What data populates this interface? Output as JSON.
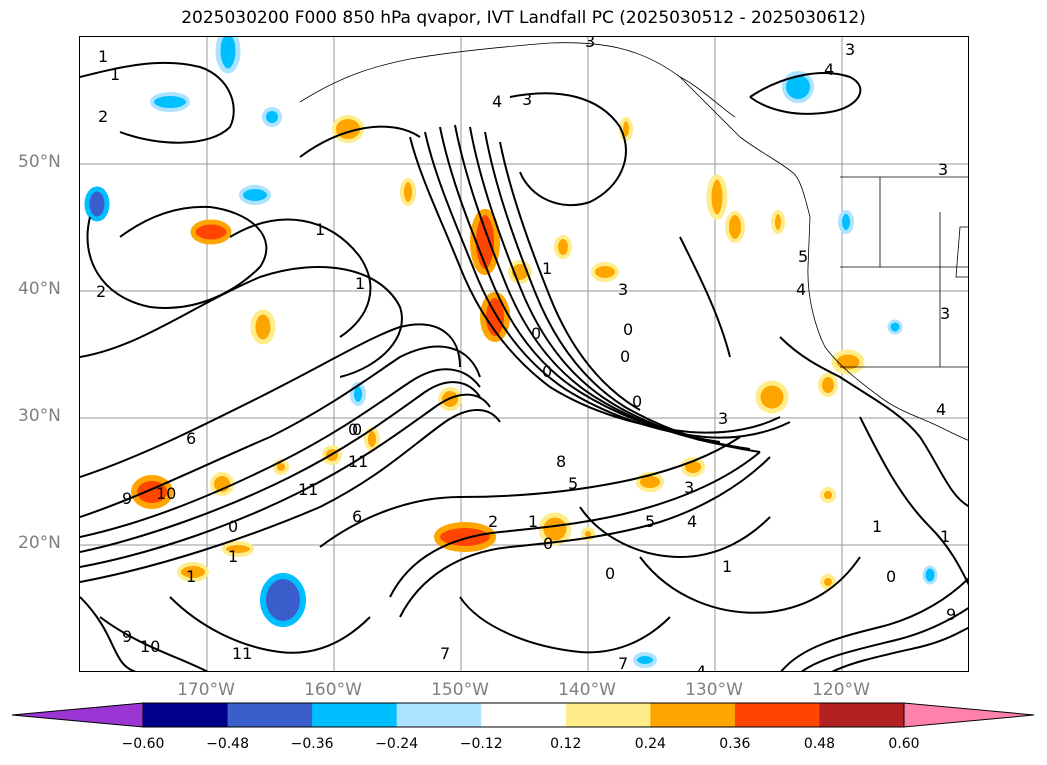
{
  "title": "2025030200 F000 850 hPa qvapor, IVT Landfall PC (2025030512 - 2025030612)",
  "lat_labels": [
    "50°N",
    "40°N",
    "30°N",
    "20°N"
  ],
  "lon_labels": [
    "170°W",
    "160°W",
    "150°W",
    "140°W",
    "130°W",
    "120°W"
  ],
  "colorbar": {
    "ticks": [
      "−0.60",
      "−0.48",
      "−0.36",
      "−0.24",
      "−0.12",
      "0.12",
      "0.24",
      "0.36",
      "0.48",
      "0.60"
    ],
    "colors": [
      "#9b35d4",
      "#00008b",
      "#3a5fcd",
      "#00bfff",
      "#aee3ff",
      "#ffffff",
      "#ffec8b",
      "#ffa500",
      "#ff4500",
      "#b22222",
      "#ff82ab"
    ]
  },
  "contour_labels": [
    "1",
    "1",
    "2",
    "4",
    "3",
    "3",
    "3",
    "4",
    "3",
    "3",
    "1",
    "1",
    "2",
    "1",
    "0",
    "3",
    "0",
    "0",
    "0",
    "0",
    "0",
    "3",
    "5",
    "4",
    "4",
    "6",
    "10",
    "11",
    "11",
    "0",
    "8",
    "5",
    "3",
    "2",
    "1",
    "0",
    "6",
    "9",
    "1",
    "0",
    "5",
    "4",
    "1",
    "0",
    "1",
    "1",
    "9",
    "9",
    "7",
    "10",
    "11",
    "4",
    "7",
    "1",
    "0"
  ]
}
